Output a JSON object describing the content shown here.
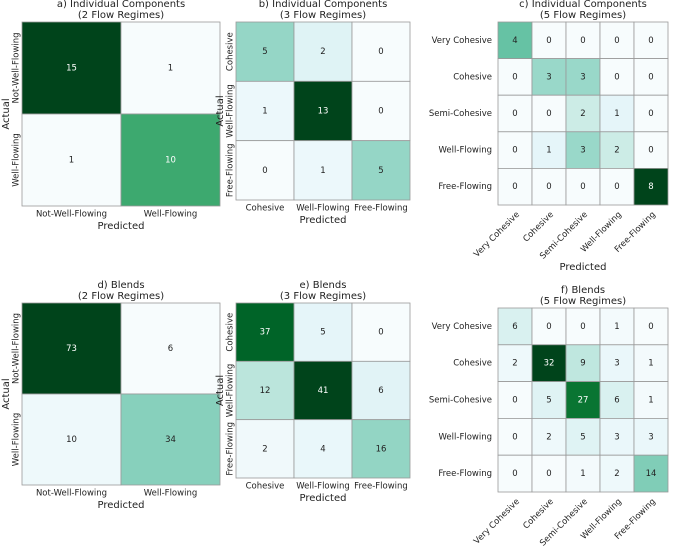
{
  "chart_data": [
    {
      "type": "heatmap",
      "title": "a) Individual Components",
      "subtitle": "(2 Flow Regimes)",
      "x_label": "Predicted",
      "y_label": "Actual",
      "x_categories": [
        "Not-Well-Flowing",
        "Well-Flowing"
      ],
      "y_categories": [
        "Not-Well-Flowing",
        "Well-Flowing"
      ],
      "values": [
        [
          15,
          1
        ],
        [
          1,
          10
        ]
      ],
      "colormap": "BuGn"
    },
    {
      "type": "heatmap",
      "title": "b) Individual Components",
      "subtitle": "(3 Flow Regimes)",
      "x_label": "Predicted",
      "y_label": "Actual",
      "x_categories": [
        "Cohesive",
        "Well-Flowing",
        "Free-Flowing"
      ],
      "y_categories": [
        "Cohesive",
        "Well-Flowing",
        "Free-Flowing"
      ],
      "values": [
        [
          5,
          2,
          0
        ],
        [
          1,
          13,
          0
        ],
        [
          0,
          1,
          5
        ]
      ],
      "colormap": "BuGn"
    },
    {
      "type": "heatmap",
      "title": "c) Individual Components",
      "subtitle": "(5 Flow Regimes)",
      "x_label": "Predicted",
      "x_categories": [
        "Very Cohesive",
        "Cohesive",
        "Semi-Cohesive",
        "Well-Flowing",
        "Free-Flowing"
      ],
      "y_categories": [
        "Very Cohesive",
        "Cohesive",
        "Semi-Cohesive",
        "Well-Flowing",
        "Free-Flowing"
      ],
      "values": [
        [
          4,
          0,
          0,
          0,
          0
        ],
        [
          0,
          3,
          3,
          0,
          0
        ],
        [
          0,
          0,
          2,
          1,
          0
        ],
        [
          0,
          1,
          3,
          2,
          0
        ],
        [
          0,
          0,
          0,
          0,
          8
        ]
      ],
      "colormap": "BuGn"
    },
    {
      "type": "heatmap",
      "title": "d) Blends",
      "subtitle": "(2 Flow Regimes)",
      "x_label": "Predicted",
      "y_label": "Actual",
      "x_categories": [
        "Not-Well-Flowing",
        "Well-Flowing"
      ],
      "y_categories": [
        "Not-Well-Flowing",
        "Well-Flowing"
      ],
      "values": [
        [
          73,
          6
        ],
        [
          10,
          34
        ]
      ],
      "colormap": "BuGn"
    },
    {
      "type": "heatmap",
      "title": "e) Blends",
      "subtitle": "(3 Flow Regimes)",
      "x_label": "Predicted",
      "y_label": "Actual",
      "x_categories": [
        "Cohesive",
        "Well-Flowing",
        "Free-Flowing"
      ],
      "y_categories": [
        "Cohesive",
        "Well-Flowing",
        "Free-Flowing"
      ],
      "values": [
        [
          37,
          5,
          0
        ],
        [
          12,
          41,
          6
        ],
        [
          2,
          4,
          16
        ]
      ],
      "colormap": "BuGn"
    },
    {
      "type": "heatmap",
      "title": "f) Blends",
      "subtitle": "(5 Flow Regimes)",
      "x_label": "Predicted",
      "x_categories": [
        "Very Cohesive",
        "Cohesive",
        "Semi-Cohesive",
        "Well-Flowing",
        "Free-Flowing"
      ],
      "y_categories": [
        "Very Cohesive",
        "Cohesive",
        "Semi-Cohesive",
        "Well-Flowing",
        "Free-Flowing"
      ],
      "values": [
        [
          6,
          0,
          0,
          1,
          0
        ],
        [
          2,
          32,
          9,
          3,
          1
        ],
        [
          0,
          5,
          27,
          6,
          1
        ],
        [
          0,
          2,
          5,
          3,
          3
        ],
        [
          0,
          0,
          1,
          2,
          14
        ]
      ],
      "colormap": "BuGn"
    }
  ]
}
